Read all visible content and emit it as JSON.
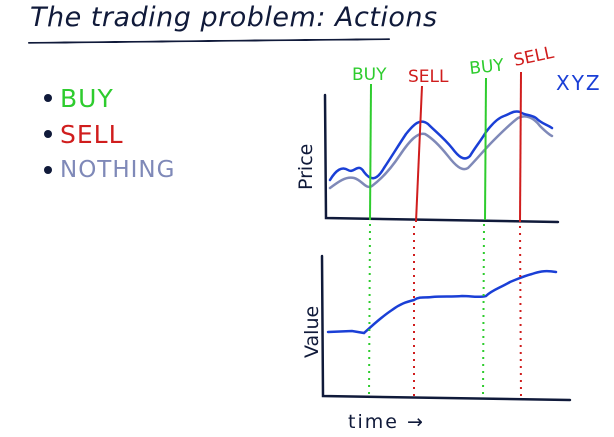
{
  "title": "The trading problem: Actions",
  "actions": [
    {
      "label": "BUY",
      "color": "#2ecc2e"
    },
    {
      "label": "SELL",
      "color": "#d01d1d"
    },
    {
      "label": "NOTHING",
      "color": "#7f89b8"
    }
  ],
  "price_chart": {
    "ylabel": "Price",
    "stock_label": "XYZ",
    "price_color": "#1a3fd6",
    "avg_color": "#7f89b8"
  },
  "value_chart": {
    "ylabel": "Value",
    "xlabel": "time →",
    "value_color": "#1a3fd6"
  },
  "event_markers": [
    {
      "label": "BUY",
      "color": "#2ecc2e"
    },
    {
      "label": "SELL",
      "color": "#d01d1d"
    },
    {
      "label": "BUY",
      "color": "#2ecc2e"
    },
    {
      "label": "SELL",
      "color": "#d01d1d"
    }
  ],
  "axis_color": "#101a3a"
}
